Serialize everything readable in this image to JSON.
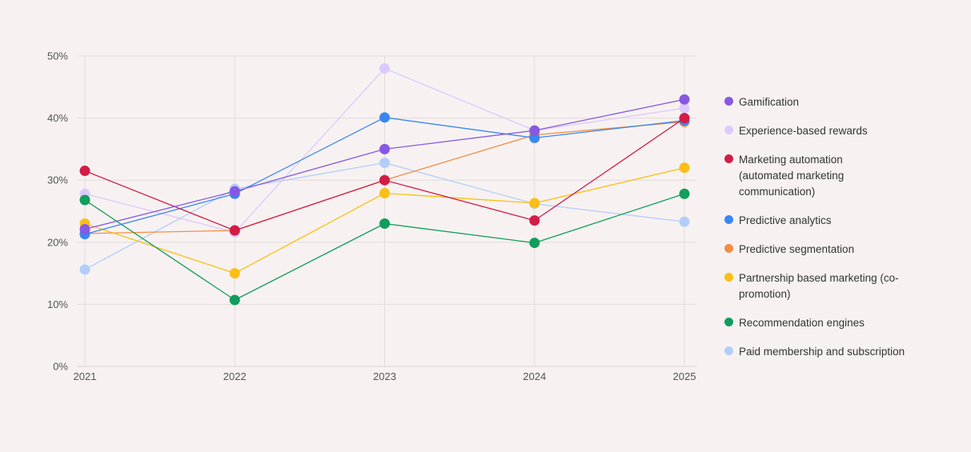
{
  "chart_data": {
    "type": "line",
    "title": "",
    "xlabel": "",
    "ylabel": "",
    "categories": [
      "2021",
      "2022",
      "2023",
      "2024",
      "2025"
    ],
    "ylim": [
      0,
      50
    ],
    "yticks": [
      "0%",
      "10%",
      "20%",
      "30%",
      "40%",
      "50%"
    ],
    "ytick_values": [
      0,
      10,
      20,
      30,
      40,
      50
    ],
    "grid": true,
    "legend_position": "right",
    "series": [
      {
        "name": "Experience-based rewards",
        "color": "#dccafe",
        "values": [
          27.8,
          21.6,
          48.0,
          38.0,
          41.6
        ]
      },
      {
        "name": "Paid membership and subscription",
        "color": "#b3cdfb",
        "values": [
          15.6,
          28.6,
          32.8,
          26.2,
          23.3
        ]
      },
      {
        "name": "Predictive segmentation",
        "color": "#f68d45",
        "values": [
          21.4,
          21.9,
          30.0,
          37.3,
          39.4
        ]
      },
      {
        "name": "Partnership based marketing (co-promotion)",
        "color": "#fbbf15",
        "values": [
          23.0,
          15.0,
          27.9,
          26.3,
          32.0
        ]
      },
      {
        "name": "Recommendation engines",
        "color": "#119d5c",
        "values": [
          26.8,
          10.7,
          23.0,
          19.9,
          27.8
        ]
      },
      {
        "name": "Predictive analytics",
        "color": "#3b86f4",
        "values": [
          21.3,
          27.8,
          40.1,
          36.8,
          39.6
        ]
      },
      {
        "name": "Marketing automation (automated marketing communication)",
        "color": "#d21d47",
        "values": [
          31.5,
          21.9,
          30.0,
          23.5,
          40.0
        ]
      },
      {
        "name": "Gamification",
        "color": "#8758e1",
        "values": [
          22.1,
          28.2,
          35.0,
          38.0,
          43.0
        ]
      }
    ],
    "legend": [
      {
        "lines": [
          "Gamification"
        ],
        "color": "#8758e1"
      },
      {
        "lines": [
          "Experience-based rewards"
        ],
        "color": "#dccafe"
      },
      {
        "lines": [
          "Marketing automation",
          "(automated marketing",
          "communication)"
        ],
        "color": "#d21d47"
      },
      {
        "lines": [
          "Predictive analytics"
        ],
        "color": "#3b86f4"
      },
      {
        "lines": [
          "Predictive segmentation"
        ],
        "color": "#f68d45"
      },
      {
        "lines": [
          "Partnership based marketing (co-",
          "promotion)"
        ],
        "color": "#fbbf15"
      },
      {
        "lines": [
          "Recommendation engines"
        ],
        "color": "#119d5c"
      },
      {
        "lines": [
          "Paid membership and subscription"
        ],
        "color": "#b3cdfb"
      }
    ]
  }
}
